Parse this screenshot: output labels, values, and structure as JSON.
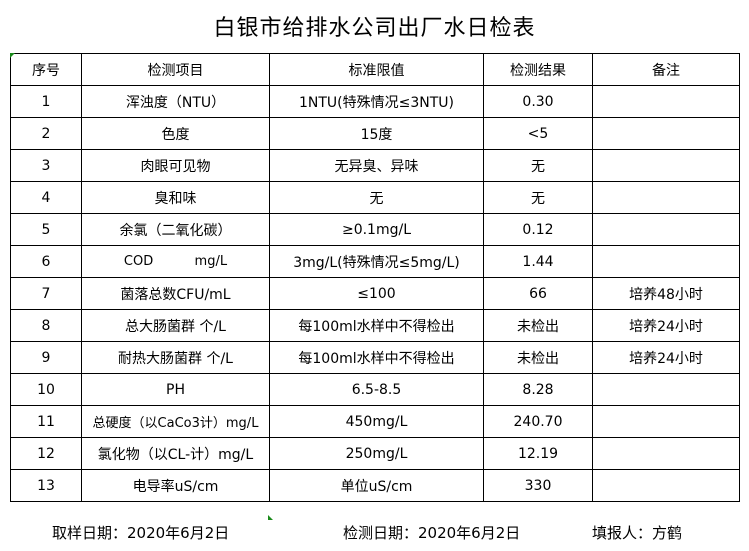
{
  "title": "白银市给排水公司出厂水日检表",
  "headers": [
    "序号",
    "检测项目",
    "标准限值",
    "检测结果",
    "备注"
  ],
  "rows": [
    [
      "1",
      "浑浊度（NTU）",
      "1NTU(特殊情况≤3NTU)",
      "0.30",
      ""
    ],
    [
      "2",
      "色度",
      "15度",
      "<5",
      ""
    ],
    [
      "3",
      "肉眼可见物",
      "无异臭、异味",
      "无",
      ""
    ],
    [
      "4",
      "臭和味",
      "无",
      "无",
      ""
    ],
    [
      "5",
      "余氯（二氧化碳）",
      "≥0.1mg/L",
      "0.12",
      ""
    ],
    [
      "6",
      "COD          mg/L",
      "3mg/L(特殊情况≤5mg/L)",
      "1.44",
      ""
    ],
    [
      "7",
      "菌落总数CFU/mL",
      "≤100",
      "66",
      "培养48小时"
    ],
    [
      "8",
      "总大肠菌群 个/L",
      "每100ml水样中不得检出",
      "未检出",
      "培养24小时"
    ],
    [
      "9",
      "耐热大肠菌群 个/L",
      "每100ml水样中不得检出",
      "未检出",
      "培养24小时"
    ],
    [
      "10",
      "PH",
      "6.5-8.5",
      "8.28",
      ""
    ],
    [
      "11",
      "总硬度（以CaCo3计）mg/L",
      "450mg/L",
      "240.70",
      ""
    ],
    [
      "12",
      "氯化物（以CL-计）mg/L",
      "250mg/L",
      "12.19",
      ""
    ],
    [
      "13",
      "电导率uS/cm",
      "单位uS/cm",
      "330",
      ""
    ]
  ],
  "footer": {
    "sampling_date": "取样日期：2020年6月2日",
    "test_date": "检测日期：2020年6月2日",
    "filled_by": "填报人：方鹤"
  }
}
